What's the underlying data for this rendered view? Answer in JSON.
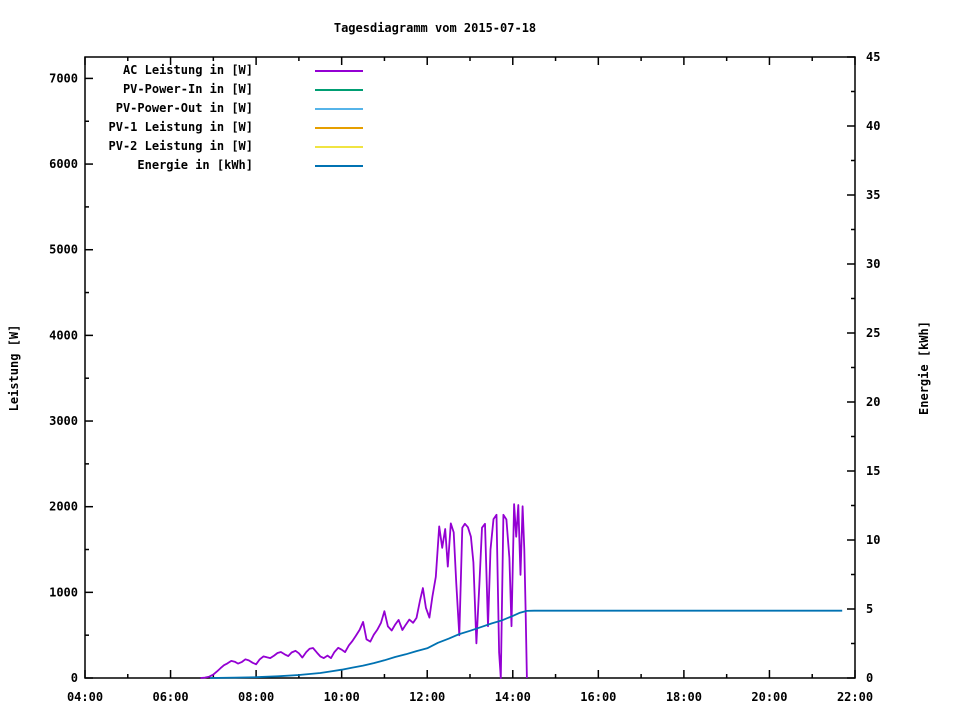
{
  "chart": {
    "title": "Tagesdiagramm vom 2015-07-18",
    "ylabel_left": "Leistung [W]",
    "ylabel_right": "Energie [kWh]"
  },
  "chart_data": {
    "type": "line",
    "title": "Tagesdiagramm vom 2015-07-18",
    "xlabel": "",
    "ylabel": "Leistung [W]",
    "y2label": "Energie [kWh]",
    "grid": false,
    "legend_position": "inside-top-left",
    "xlim_hours": [
      4,
      22
    ],
    "ylim_left": [
      0,
      7250
    ],
    "ylim_right": [
      0,
      45
    ],
    "x_tick_hours": [
      4,
      6,
      8,
      10,
      12,
      14,
      16,
      18,
      20,
      22
    ],
    "x_tick_labels": [
      "04:00",
      "06:00",
      "08:00",
      "10:00",
      "12:00",
      "14:00",
      "16:00",
      "18:00",
      "20:00",
      "22:00"
    ],
    "x_minor_hours": [
      5,
      7,
      9,
      11,
      13,
      15,
      17,
      19,
      21
    ],
    "y_left_ticks": [
      0,
      1000,
      2000,
      3000,
      4000,
      5000,
      6000,
      7000
    ],
    "y_left_tick_labels": [
      "0",
      "1000",
      "2000",
      "3000",
      "4000",
      "5000",
      "6000",
      "7000"
    ],
    "y_left_minor": [
      500,
      1500,
      2500,
      3500,
      4500,
      5500,
      6500
    ],
    "y_right_ticks": [
      0,
      5,
      10,
      15,
      20,
      25,
      30,
      35,
      40,
      45
    ],
    "y_right_tick_labels": [
      "0",
      "5",
      "10",
      "15",
      "20",
      "25",
      "30",
      "35",
      "40",
      "45"
    ],
    "y_right_minor": [
      2.5,
      7.5,
      12.5,
      17.5,
      22.5,
      27.5,
      32.5,
      37.5,
      42.5
    ],
    "series": [
      {
        "name": "AC Leistung in [W]",
        "color": "#9400D3",
        "axis": "left",
        "x_hours": [
          6.7,
          6.8,
          6.9,
          7.0,
          7.08,
          7.17,
          7.25,
          7.33,
          7.42,
          7.5,
          7.58,
          7.67,
          7.75,
          7.83,
          7.92,
          8.0,
          8.08,
          8.17,
          8.25,
          8.33,
          8.42,
          8.5,
          8.58,
          8.67,
          8.75,
          8.83,
          8.92,
          9.0,
          9.08,
          9.17,
          9.25,
          9.33,
          9.42,
          9.5,
          9.58,
          9.67,
          9.75,
          9.83,
          9.92,
          10.0,
          10.08,
          10.17,
          10.25,
          10.33,
          10.42,
          10.5,
          10.58,
          10.67,
          10.75,
          10.83,
          10.92,
          11.0,
          11.08,
          11.17,
          11.25,
          11.33,
          11.42,
          11.5,
          11.58,
          11.67,
          11.75,
          11.83,
          11.9,
          11.97,
          12.05,
          12.12,
          12.2,
          12.28,
          12.35,
          12.42,
          12.48,
          12.55,
          12.62,
          12.68,
          12.75,
          12.82,
          12.88,
          12.95,
          13.02,
          13.08,
          13.15,
          13.22,
          13.28,
          13.35,
          13.42,
          13.48,
          13.55,
          13.62,
          13.68,
          13.72,
          13.78,
          13.85,
          13.92,
          13.97,
          14.03,
          14.08,
          14.13,
          14.18,
          14.23,
          14.27,
          14.3,
          14.33
        ],
        "values": [
          0,
          5,
          15,
          40,
          75,
          115,
          150,
          170,
          200,
          190,
          168,
          188,
          218,
          205,
          178,
          160,
          215,
          252,
          242,
          232,
          262,
          292,
          304,
          276,
          256,
          298,
          318,
          288,
          238,
          302,
          342,
          350,
          296,
          252,
          232,
          262,
          232,
          302,
          352,
          330,
          302,
          382,
          432,
          492,
          562,
          655,
          452,
          425,
          505,
          562,
          645,
          780,
          602,
          555,
          622,
          678,
          560,
          622,
          682,
          645,
          702,
          905,
          1050,
          820,
          705,
          950,
          1180,
          1770,
          1520,
          1740,
          1300,
          1805,
          1700,
          1100,
          500,
          1755,
          1800,
          1760,
          1650,
          1350,
          405,
          1100,
          1755,
          1800,
          605,
          1500,
          1855,
          1905,
          300,
          0,
          1905,
          1850,
          1400,
          605,
          2030,
          1650,
          2020,
          1205,
          2005,
          1500,
          800,
          0
        ]
      },
      {
        "name": "PV-Power-In in [W]",
        "color": "#009E73",
        "axis": "left",
        "x_hours": [],
        "values": []
      },
      {
        "name": "PV-Power-Out in [W]",
        "color": "#56B4E9",
        "axis": "left",
        "x_hours": [],
        "values": []
      },
      {
        "name": "PV-1 Leistung in [W]",
        "color": "#E69F00",
        "axis": "left",
        "x_hours": [],
        "values": []
      },
      {
        "name": "PV-2 Leistung in [W]",
        "color": "#F0E442",
        "axis": "left",
        "x_hours": [],
        "values": []
      },
      {
        "name": "Energie in [kWh]",
        "color": "#0072B2",
        "axis": "right",
        "x_hours": [
          6.92,
          7.5,
          8.0,
          8.5,
          9.0,
          9.5,
          9.75,
          10.0,
          10.25,
          10.5,
          10.75,
          11.0,
          11.25,
          11.5,
          11.75,
          12.0,
          12.25,
          12.5,
          12.75,
          13.0,
          13.25,
          13.5,
          13.75,
          14.0,
          14.17,
          14.33,
          14.5,
          16.0,
          18.0,
          20.0,
          21.7
        ],
        "values": [
          0,
          0.03,
          0.06,
          0.12,
          0.22,
          0.36,
          0.48,
          0.6,
          0.75,
          0.9,
          1.08,
          1.28,
          1.52,
          1.72,
          1.95,
          2.15,
          2.55,
          2.85,
          3.18,
          3.42,
          3.68,
          3.95,
          4.18,
          4.5,
          4.73,
          4.86,
          4.88,
          4.88,
          4.88,
          4.88,
          4.88
        ]
      }
    ],
    "annotations": {
      "ac_peak_watts": 2030,
      "energy_final_kwh": 4.88
    }
  }
}
